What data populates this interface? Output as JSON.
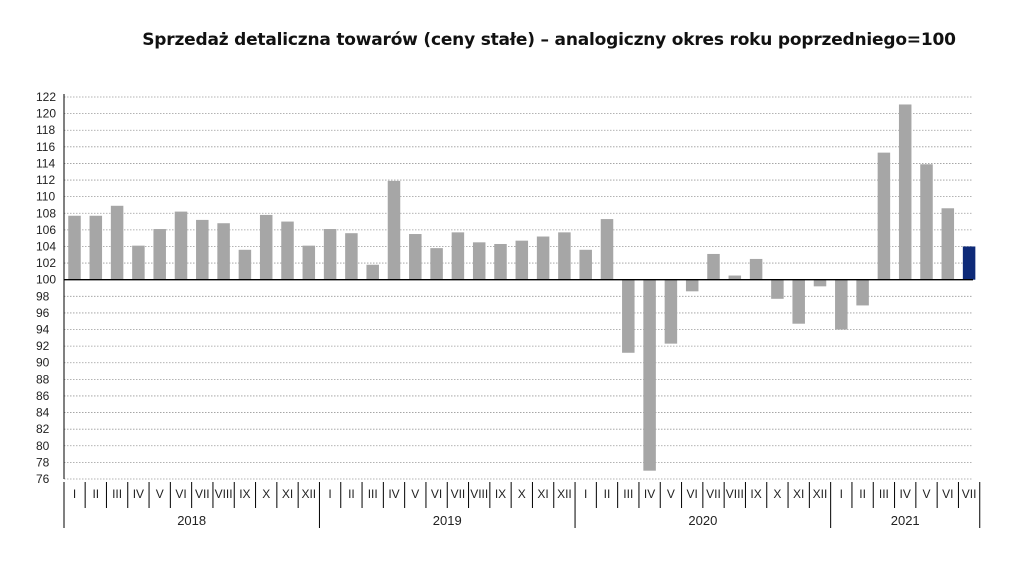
{
  "chart_data": {
    "type": "bar",
    "title": "Sprzedaż detaliczna towarów (ceny stałe) – analogiczny okres roku poprzedniego=100",
    "xlabel": "",
    "ylabel": "",
    "baseline": 100,
    "ylim": [
      76,
      122
    ],
    "yticks": [
      76,
      78,
      80,
      82,
      84,
      86,
      88,
      90,
      92,
      94,
      96,
      98,
      100,
      102,
      104,
      106,
      108,
      110,
      112,
      114,
      116,
      118,
      120,
      122
    ],
    "grid": true,
    "colors": {
      "bar": "#a6a6a6",
      "highlight": "#0e2a78",
      "grid": "#9a9a9a",
      "axis": "#000000"
    },
    "years": [
      {
        "label": "2018",
        "months": [
          "I",
          "II",
          "III",
          "IV",
          "V",
          "VI",
          "VII",
          "VIII",
          "IX",
          "X",
          "XI",
          "XII"
        ],
        "values": [
          107.7,
          107.7,
          108.9,
          104.1,
          106.1,
          108.2,
          107.2,
          106.8,
          103.6,
          107.8,
          107.0,
          104.1
        ]
      },
      {
        "label": "2019",
        "months": [
          "I",
          "II",
          "III",
          "IV",
          "V",
          "VI",
          "VII",
          "VIII",
          "IX",
          "X",
          "XI",
          "XII"
        ],
        "values": [
          106.1,
          105.6,
          101.8,
          111.9,
          105.5,
          103.8,
          105.7,
          104.5,
          104.3,
          104.7,
          105.2,
          105.7
        ]
      },
      {
        "label": "2020",
        "months": [
          "I",
          "II",
          "III",
          "IV",
          "V",
          "VI",
          "VII",
          "VIII",
          "IX",
          "X",
          "XI",
          "XII"
        ],
        "values": [
          103.6,
          107.3,
          91.2,
          77.0,
          92.3,
          98.6,
          103.1,
          100.5,
          102.5,
          97.7,
          94.7,
          99.2
        ]
      },
      {
        "label": "2021",
        "months": [
          "I",
          "II",
          "III",
          "IV",
          "V",
          "VI",
          "VII"
        ],
        "values": [
          94.0,
          96.9,
          115.3,
          121.1,
          113.9,
          108.6,
          104.0
        ]
      }
    ]
  }
}
